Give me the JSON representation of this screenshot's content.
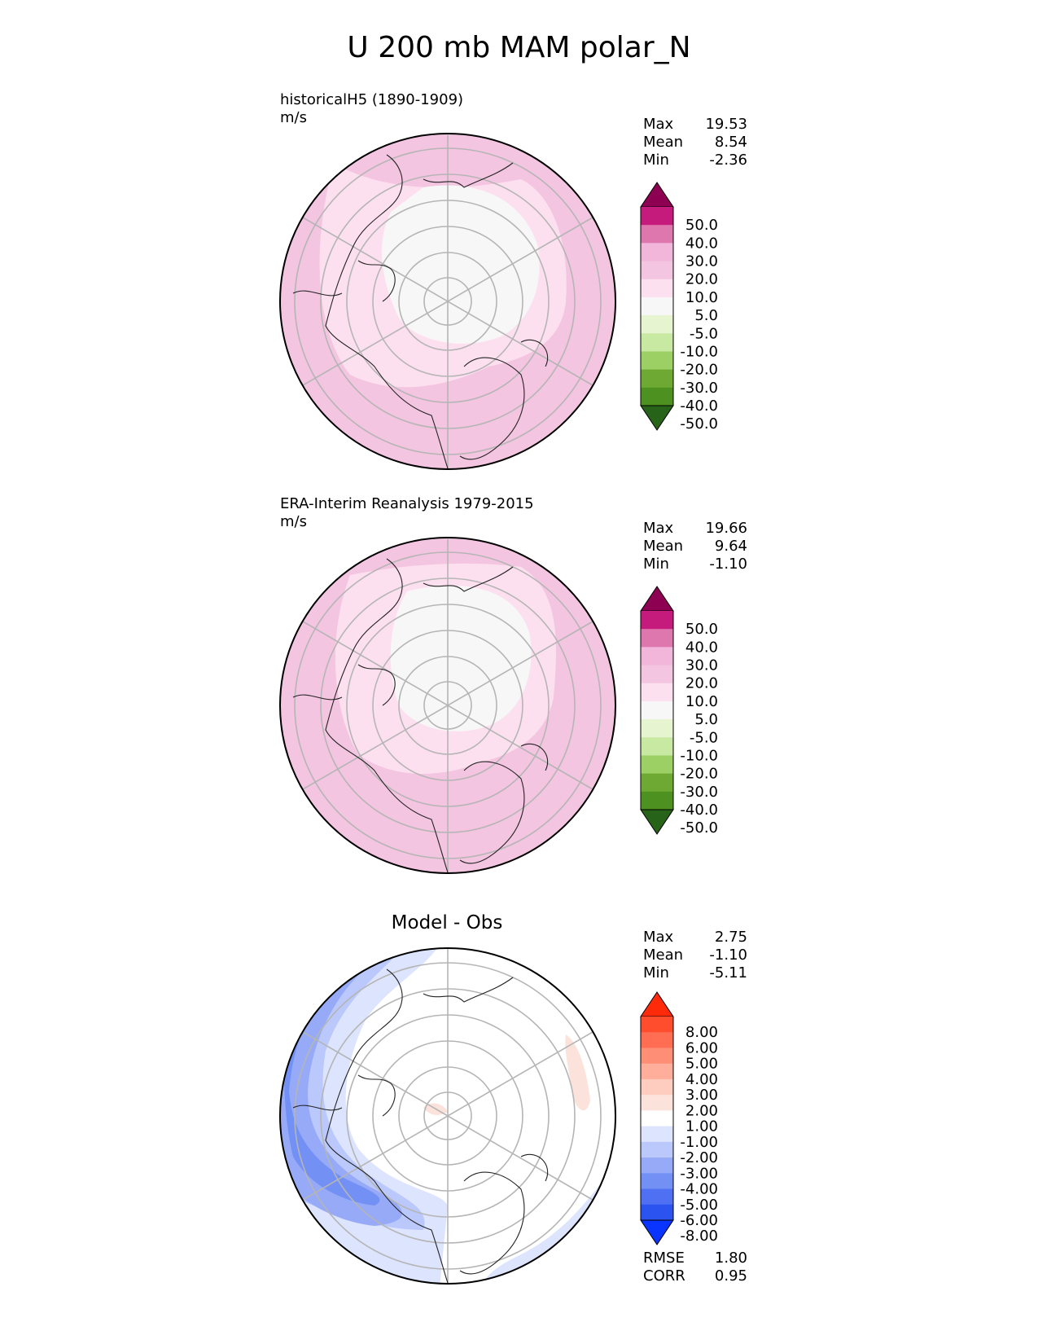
{
  "figure": {
    "title": "U 200 mb MAM polar_N"
  },
  "panels": [
    {
      "id": "model",
      "title": "historicalH5 (1890-1909)",
      "units": "m/s",
      "stats": [
        {
          "label": "Max",
          "value": "19.53"
        },
        {
          "label": "Mean",
          "value": "8.54"
        },
        {
          "label": "Min",
          "value": "-2.36"
        }
      ],
      "colorbar": {
        "labels": [
          "50.0",
          "40.0",
          "30.0",
          "20.0",
          "10.0",
          "5.0",
          "-5.0",
          "-10.0",
          "-20.0",
          "-30.0",
          "-40.0",
          "-50.0"
        ],
        "colors": [
          "#8e0152",
          "#c51b7d",
          "#de77ae",
          "#f1b6da",
          "#f4c5e1",
          "#fde0ef",
          "#f7f7f7",
          "#e6f5d0",
          "#c8e9a1",
          "#9ccf64",
          "#6ea933",
          "#4d9221",
          "#276419"
        ]
      }
    },
    {
      "id": "obs",
      "title": "ERA-Interim Reanalysis 1979-2015",
      "units": "m/s",
      "stats": [
        {
          "label": "Max",
          "value": "19.66"
        },
        {
          "label": "Mean",
          "value": "9.64"
        },
        {
          "label": "Min",
          "value": "-1.10"
        }
      ],
      "colorbar": {
        "labels": [
          "50.0",
          "40.0",
          "30.0",
          "20.0",
          "10.0",
          "5.0",
          "-5.0",
          "-10.0",
          "-20.0",
          "-30.0",
          "-40.0",
          "-50.0"
        ],
        "colors": [
          "#8e0152",
          "#c51b7d",
          "#de77ae",
          "#f1b6da",
          "#f4c5e1",
          "#fde0ef",
          "#f7f7f7",
          "#e6f5d0",
          "#c8e9a1",
          "#9ccf64",
          "#6ea933",
          "#4d9221",
          "#276419"
        ]
      }
    },
    {
      "id": "diff",
      "title": "Model - Obs",
      "units": "",
      "stats": [
        {
          "label": "Max",
          "value": "2.75"
        },
        {
          "label": "Mean",
          "value": "-1.10"
        },
        {
          "label": "Min",
          "value": "-5.11"
        }
      ],
      "bottom_stats": [
        {
          "label": "RMSE",
          "value": "1.80"
        },
        {
          "label": "CORR",
          "value": "0.95"
        }
      ],
      "colorbar": {
        "labels": [
          "8.00",
          "6.00",
          "5.00",
          "4.00",
          "3.00",
          "2.00",
          "1.00",
          "-1.00",
          "-2.00",
          "-3.00",
          "-4.00",
          "-5.00",
          "-6.00",
          "-8.00"
        ],
        "colors": [
          "#ff2a0a",
          "#ff4d2e",
          "#ff6e52",
          "#ff8e76",
          "#ffae9b",
          "#ffccc0",
          "#fbe3dc",
          "#ffffff",
          "#dde4fd",
          "#bac8fb",
          "#96aaf8",
          "#7390f5",
          "#4f70f2",
          "#2b53ef",
          "#0a34ff"
        ]
      }
    }
  ]
}
